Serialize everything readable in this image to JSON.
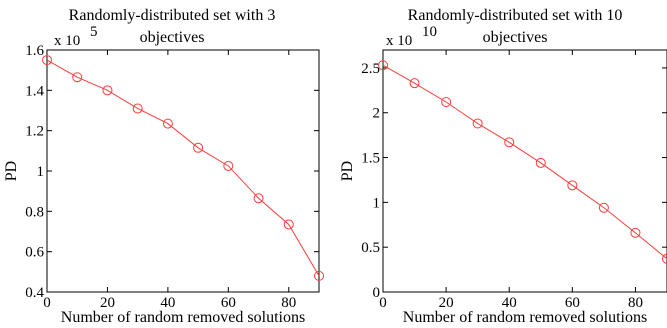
{
  "chart_data": [
    {
      "type": "line",
      "title": [
        "Randomly-distributed set with 3",
        "objectives"
      ],
      "xlabel": "Number of random removed solutions",
      "ylabel": "PD",
      "y_exponent_prefix": "x 10",
      "y_exponent_power": "5",
      "xlim": [
        0,
        90
      ],
      "ylim": [
        0.4,
        1.6
      ],
      "xticks": [
        0,
        20,
        40,
        60,
        80
      ],
      "xtick_labels": [
        "0",
        "20",
        "40",
        "60",
        "80"
      ],
      "yticks": [
        0.4,
        0.6,
        0.8,
        1.0,
        1.2,
        1.4,
        1.6
      ],
      "ytick_labels": [
        "0.4",
        "0.6",
        "0.8",
        "1",
        "1.2",
        "1.4",
        "1.6"
      ],
      "grid": false,
      "series": [
        {
          "color": "#ff3b3b",
          "marker": "circle",
          "x": [
            0,
            10,
            20,
            30,
            40,
            50,
            60,
            70,
            80,
            90
          ],
          "y": [
            1.55,
            1.465,
            1.4,
            1.31,
            1.235,
            1.115,
            1.025,
            0.865,
            0.735,
            0.48
          ]
        }
      ]
    },
    {
      "type": "line",
      "title": [
        "Randomly-distributed set with 10",
        "objectives"
      ],
      "xlabel": "Number of random removed solutions",
      "ylabel": "PD",
      "y_exponent_prefix": "x 10",
      "y_exponent_power": "10",
      "xlim": [
        0,
        90
      ],
      "ylim": [
        0,
        2.7
      ],
      "xticks": [
        0,
        20,
        40,
        60,
        80
      ],
      "xtick_labels": [
        "0",
        "20",
        "40",
        "60",
        "80"
      ],
      "yticks": [
        0,
        0.5,
        1.0,
        1.5,
        2.0,
        2.5
      ],
      "ytick_labels": [
        "0",
        "0.5",
        "1",
        "1.5",
        "2",
        "2.5"
      ],
      "grid": false,
      "series": [
        {
          "color": "#ff3b3b",
          "marker": "circle",
          "x": [
            0,
            10,
            20,
            30,
            40,
            50,
            60,
            70,
            80,
            90
          ],
          "y": [
            2.53,
            2.33,
            2.12,
            1.88,
            1.67,
            1.44,
            1.19,
            0.94,
            0.66,
            0.37
          ]
        }
      ]
    }
  ]
}
